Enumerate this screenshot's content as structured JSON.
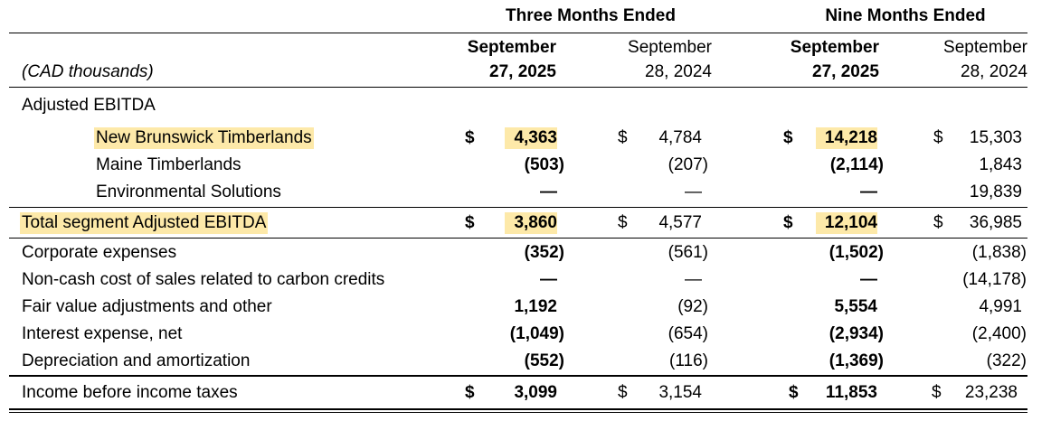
{
  "header": {
    "group_three": "Three Months Ended",
    "group_nine": "Nine Months Ended",
    "col1_line1": "September",
    "col1_line2": "27, 2025",
    "col2_line1": "September",
    "col2_line2": "28, 2024",
    "col3_line1": "September",
    "col3_line2": "27, 2025",
    "col4_line1": "September",
    "col4_line2": "28, 2024",
    "units": "(CAD thousands)"
  },
  "section_label": "Adjusted EBITDA",
  "dollar": "$",
  "rows": {
    "nbt": {
      "label": "New Brunswick Timberlands",
      "v1": "4,363",
      "v2": "4,784",
      "v3": "14,218",
      "v4": "15,303"
    },
    "maine": {
      "label": "Maine Timberlands",
      "v1": "(503)",
      "v2": "(207)",
      "v3": "(2,114)",
      "v4": "1,843"
    },
    "env": {
      "label": "Environmental Solutions",
      "v1": "—",
      "v2": "—",
      "v3": "—",
      "v4": "19,839"
    },
    "total": {
      "label": "Total segment Adjusted EBITDA",
      "v1": "3,860",
      "v2": "4,577",
      "v3": "12,104",
      "v4": "36,985"
    },
    "corp": {
      "label": "Corporate expenses",
      "v1": "(352)",
      "v2": "(561)",
      "v3": "(1,502)",
      "v4": "(1,838)"
    },
    "noncash": {
      "label": "Non-cash cost of sales related to carbon credits",
      "v1": "—",
      "v2": "—",
      "v3": "—",
      "v4": "(14,178)"
    },
    "fairvalue": {
      "label": "Fair value adjustments and other",
      "v1": "1,192",
      "v2": "(92)",
      "v3": "5,554",
      "v4": "4,991"
    },
    "interest": {
      "label": "Interest expense, net",
      "v1": "(1,049)",
      "v2": "(654)",
      "v3": "(2,934)",
      "v4": "(2,400)"
    },
    "depr": {
      "label": "Depreciation and amortization",
      "v1": "(552)",
      "v2": "(116)",
      "v3": "(1,369)",
      "v4": "(322)"
    },
    "income": {
      "label": "Income before income taxes",
      "v1": "3,099",
      "v2": "3,154",
      "v3": "11,853",
      "v4": "23,238"
    }
  }
}
